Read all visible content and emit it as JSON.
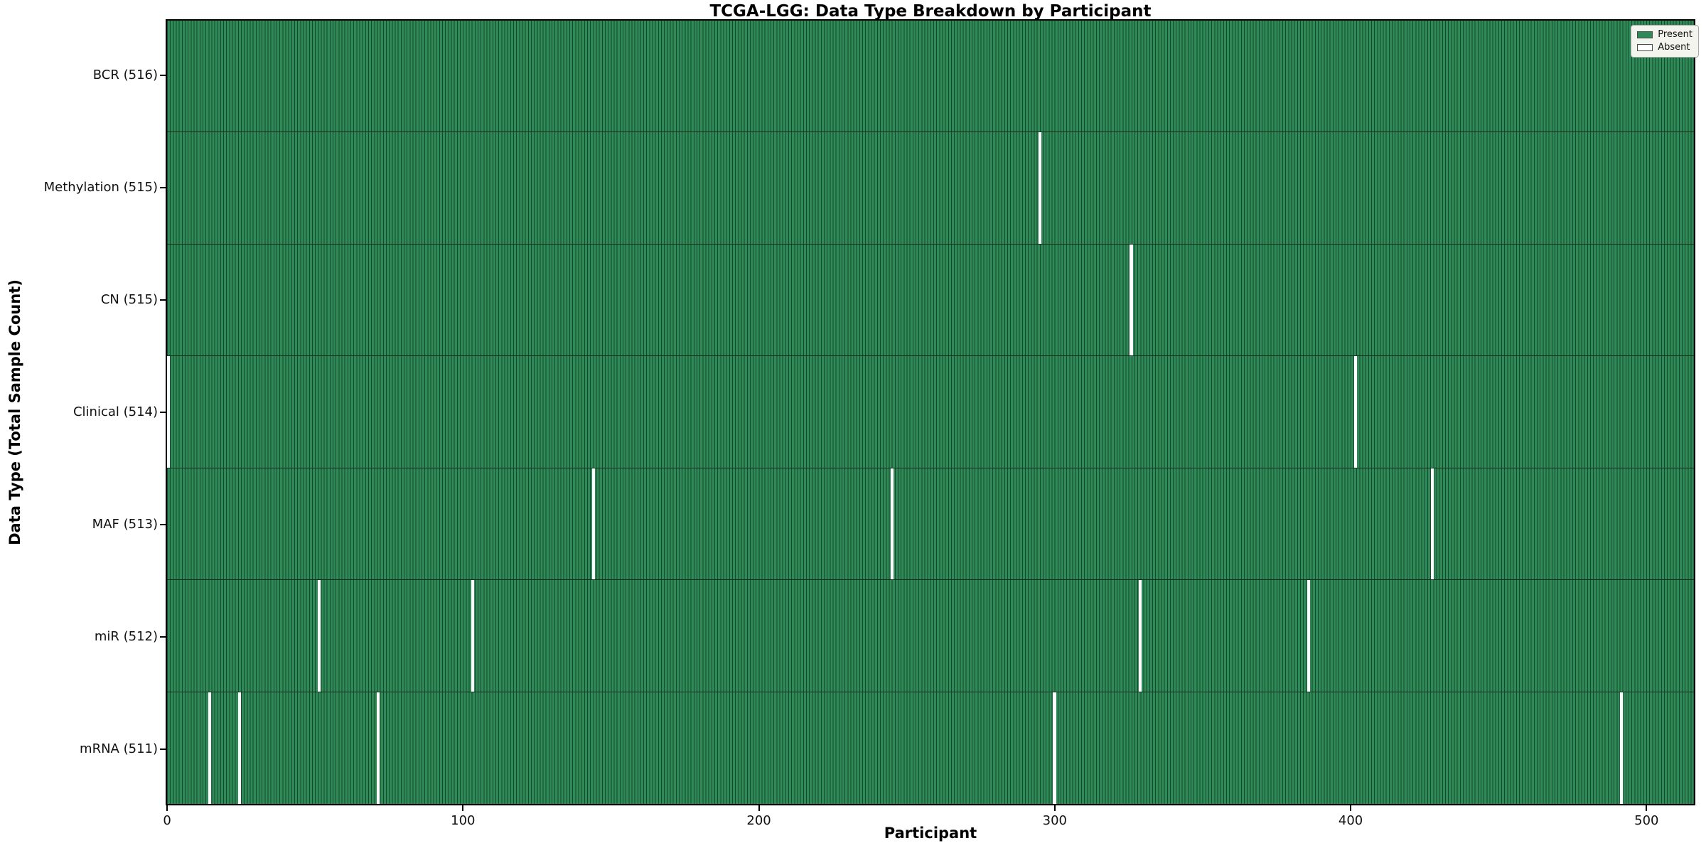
{
  "chart_data": {
    "type": "heatmap",
    "title": "TCGA-LGG: Data Type Breakdown by Participant",
    "xlabel": "Participant",
    "ylabel": "Data Type (Total Sample Count)",
    "n_participants": 516,
    "x_domain": [
      -0.5,
      516.5
    ],
    "x_ticks": [
      0,
      100,
      200,
      300,
      400,
      500
    ],
    "grid": false,
    "rows": [
      {
        "data_type": "BCR",
        "label": "BCR (516)",
        "total": 516,
        "absent_participants": []
      },
      {
        "data_type": "Methylation",
        "label": "Methylation (515)",
        "total": 515,
        "absent_participants": [
          295
        ]
      },
      {
        "data_type": "CN",
        "label": "CN (515)",
        "total": 515,
        "absent_participants": [
          326
        ]
      },
      {
        "data_type": "Clinical",
        "label": "Clinical (514)",
        "total": 514,
        "absent_participants": [
          0,
          402
        ]
      },
      {
        "data_type": "MAF",
        "label": "MAF (513)",
        "total": 513,
        "absent_participants": [
          144,
          245,
          428
        ]
      },
      {
        "data_type": "miR",
        "label": "miR (512)",
        "total": 512,
        "absent_participants": [
          51,
          103,
          329,
          386
        ]
      },
      {
        "data_type": "mRNA",
        "label": "mRNA (511)",
        "total": 511,
        "absent_participants": [
          14,
          24,
          71,
          300,
          492
        ]
      }
    ],
    "legend": {
      "position": "upper right",
      "entries": [
        {
          "label": "Present",
          "color": "#2e8b57"
        },
        {
          "label": "Absent",
          "color": "#ffffff"
        }
      ]
    },
    "colors": {
      "present": "#2e8b57",
      "absent": "#ffffff",
      "bar_edge": "#17472e",
      "row_separator": "#0d2b1b",
      "spine": "#000000",
      "legend_background": "#f4f4ee"
    }
  }
}
